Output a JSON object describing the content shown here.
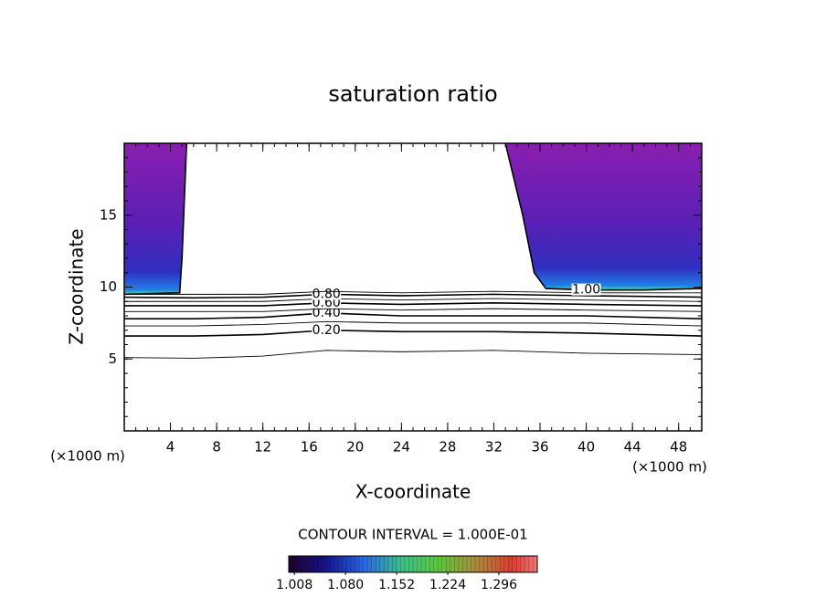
{
  "chart_data": {
    "type": "contour",
    "title": "saturation ratio",
    "xlabel": "X-coordinate",
    "ylabel": "Z-coordinate",
    "x_unit": "(×1000 m)",
    "y_unit": "(×1000 m)",
    "xlim": [
      0,
      50
    ],
    "ylim": [
      0,
      20
    ],
    "xticks": [
      4,
      8,
      12,
      16,
      20,
      24,
      28,
      32,
      36,
      40,
      44,
      48
    ],
    "yticks": [
      5,
      10,
      15
    ],
    "contour_interval_text": "CONTOUR INTERVAL = 1.000E-01",
    "contours": [
      {
        "level": 0.1,
        "x": [
          0,
          6,
          12,
          17.5,
          24,
          32,
          40,
          50
        ],
        "y": [
          5.1,
          5.05,
          5.2,
          5.6,
          5.5,
          5.6,
          5.4,
          5.3
        ]
      },
      {
        "level": 0.2,
        "label": "0.20",
        "x": [
          0,
          6,
          12,
          17.5,
          24,
          32,
          40,
          50
        ],
        "y": [
          6.6,
          6.6,
          6.7,
          7.0,
          6.9,
          6.9,
          6.8,
          6.6
        ]
      },
      {
        "level": 0.3,
        "x": [
          0,
          6,
          12,
          17.5,
          24,
          32,
          40,
          50
        ],
        "y": [
          7.3,
          7.3,
          7.4,
          7.6,
          7.5,
          7.5,
          7.5,
          7.3
        ]
      },
      {
        "level": 0.4,
        "label": "0.40",
        "x": [
          0,
          6,
          12,
          17.5,
          24,
          32,
          40,
          50
        ],
        "y": [
          7.8,
          7.8,
          7.9,
          8.2,
          8.0,
          8.0,
          8.0,
          7.8
        ]
      },
      {
        "level": 0.5,
        "x": [
          0,
          6,
          12,
          17.5,
          24,
          32,
          40,
          50
        ],
        "y": [
          8.3,
          8.3,
          8.3,
          8.5,
          8.4,
          8.5,
          8.4,
          8.3
        ]
      },
      {
        "level": 0.6,
        "label": "0.60",
        "x": [
          0,
          6,
          12,
          17.5,
          24,
          32,
          40,
          50
        ],
        "y": [
          8.7,
          8.7,
          8.7,
          8.9,
          8.8,
          8.9,
          8.8,
          8.7
        ]
      },
      {
        "level": 0.7,
        "x": [
          0,
          6,
          12,
          17.5,
          24,
          32,
          40,
          50
        ],
        "y": [
          9.0,
          9.0,
          9.0,
          9.2,
          9.1,
          9.2,
          9.1,
          9.0
        ]
      },
      {
        "level": 0.8,
        "label": "0.80",
        "x": [
          0,
          6,
          12,
          17.5,
          24,
          32,
          40,
          50
        ],
        "y": [
          9.3,
          9.25,
          9.3,
          9.5,
          9.4,
          9.5,
          9.4,
          9.3
        ]
      },
      {
        "level": 0.9,
        "x": [
          0,
          6,
          12,
          17.5,
          24,
          32,
          40,
          50
        ],
        "y": [
          9.5,
          9.5,
          9.5,
          9.7,
          9.6,
          9.7,
          9.6,
          9.6
        ]
      },
      {
        "level": 1.0,
        "label": "1.00",
        "x": [
          0,
          4.8,
          5.0,
          5.2,
          5.4,
          null,
          33,
          34.5,
          35.5,
          36.5,
          40,
          45,
          50
        ],
        "y": [
          9.5,
          9.6,
          12,
          16,
          20,
          null,
          20,
          15,
          11,
          9.9,
          9.8,
          9.8,
          9.9
        ]
      }
    ],
    "clim": [
      1.0,
      1.35
    ],
    "cticks": [
      1.008,
      {
        "value": 1.08,
        "label": "1.080"
      },
      1.152,
      1.224,
      1.296
    ]
  }
}
